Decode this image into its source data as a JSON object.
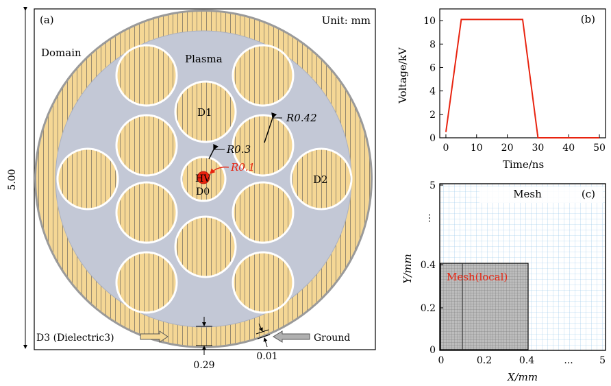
{
  "panel_a": {
    "label": "(a)",
    "unit": "Unit: mm",
    "domain": "Domain",
    "plasma": "Plasma",
    "d1": "D1",
    "d2": "D2",
    "d0": "D0",
    "hv": "HV",
    "r042": "R0.42",
    "r03": "R0.3",
    "r01": "R0.1",
    "dim_side": "5.00",
    "d3": "D3 (Dielectric3)",
    "ground": "Ground",
    "dim_029": "0.29",
    "dim_001": "0.01",
    "colors": {
      "plasma": "#c3c8d6",
      "dielectric": "#f5d795",
      "highlight": "#e8230f",
      "outline": "#8a8a8a"
    }
  },
  "chart_data": [
    {
      "type": "line",
      "panel": "(b)",
      "xlabel": "Time/ns",
      "ylabel": "Voltage/kV",
      "xlim": [
        -2,
        52
      ],
      "ylim": [
        0,
        11
      ],
      "xticks": [
        0,
        10,
        20,
        30,
        40,
        50
      ],
      "yticks": [
        0,
        2,
        4,
        6,
        8,
        10
      ],
      "series": [
        {
          "color": "#e8230f",
          "x": [
            0,
            5,
            25,
            30,
            50
          ],
          "y": [
            0.5,
            10.1,
            10.1,
            0,
            0
          ]
        }
      ]
    },
    {
      "type": "heatmap",
      "panel": "(c)",
      "title": "Mesh",
      "inset_label": "Mesh(local)",
      "xlabel": "X/mm",
      "ylabel": "Y/mm",
      "xticks": [
        "0",
        "0.2",
        "0.4",
        "...",
        "5"
      ],
      "yticks": [
        "0",
        "0.2",
        "0.4",
        "...",
        "5"
      ],
      "grid_color": "#8ec3e8",
      "inset_color": "#e8230f"
    }
  ]
}
